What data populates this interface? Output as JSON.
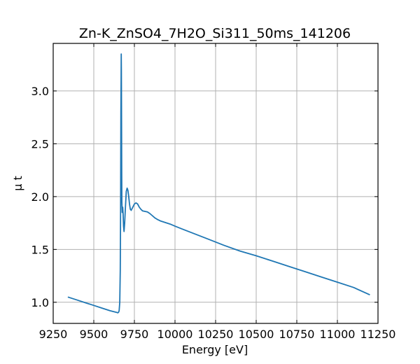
{
  "chart_data": {
    "type": "line",
    "title": "Zn-K_ZnSO4_7H2O_Si311_50ms_141206",
    "xlabel": "Energy [eV]",
    "ylabel": "μ t",
    "xlim": [
      9250,
      11250
    ],
    "ylim": [
      0.8,
      3.45
    ],
    "xticks": [
      9250,
      9500,
      9750,
      10000,
      10250,
      10500,
      10750,
      11000,
      11250
    ],
    "yticks": [
      1.0,
      1.5,
      2.0,
      2.5,
      3.0
    ],
    "grid": true,
    "color": "#1f77b4",
    "series": [
      {
        "x": [
          9340,
          9400,
          9450,
          9500,
          9550,
          9600,
          9640,
          9648,
          9652,
          9656,
          9660,
          9663,
          9665,
          9667,
          9668,
          9669,
          9670,
          9671,
          9672,
          9673,
          9675,
          9678,
          9680,
          9683,
          9686,
          9690,
          9695,
          9700,
          9705,
          9710,
          9715,
          9720,
          9725,
          9730,
          9740,
          9750,
          9760,
          9770,
          9780,
          9790,
          9800,
          9815,
          9830,
          9845,
          9860,
          9875,
          9890,
          9910,
          9930,
          9950,
          9970,
          10000,
          10050,
          10100,
          10200,
          10300,
          10400,
          10500,
          10600,
          10700,
          10800,
          10900,
          11000,
          11100,
          11200
        ],
        "y": [
          1.05,
          1.02,
          0.995,
          0.97,
          0.945,
          0.92,
          0.905,
          0.9,
          0.905,
          0.92,
          1.0,
          1.3,
          1.9,
          2.8,
          3.1,
          3.35,
          3.2,
          2.6,
          2.2,
          1.95,
          1.85,
          1.9,
          1.85,
          1.72,
          1.67,
          1.75,
          1.9,
          2.05,
          2.08,
          2.06,
          2.0,
          1.93,
          1.88,
          1.87,
          1.9,
          1.93,
          1.94,
          1.93,
          1.9,
          1.88,
          1.865,
          1.86,
          1.855,
          1.84,
          1.82,
          1.8,
          1.785,
          1.77,
          1.76,
          1.75,
          1.74,
          1.72,
          1.69,
          1.66,
          1.6,
          1.54,
          1.485,
          1.44,
          1.39,
          1.34,
          1.29,
          1.24,
          1.19,
          1.14,
          1.07
        ]
      }
    ]
  }
}
